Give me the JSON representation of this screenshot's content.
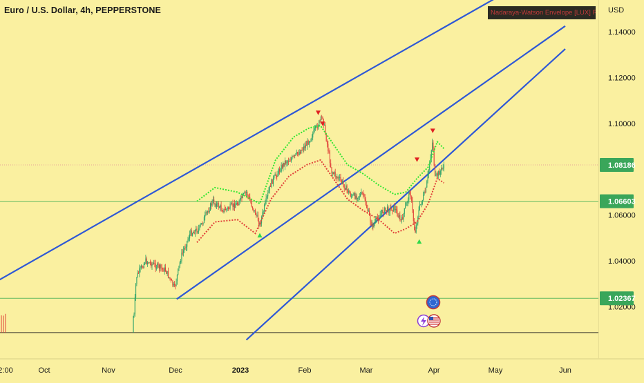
{
  "header": {
    "symbol_title": "Euro / U.S. Dollar, 4h, PEPPERSTONE",
    "indicator_tag": "Nadaraya-Watson Envelope [LUX] Repaints",
    "currency": "USD"
  },
  "colors": {
    "background": "#faf0a0",
    "channel_line": "#2e58d6",
    "envelope_upper": "#32e632",
    "envelope_lower": "#e0413a",
    "horizontal_level": "#5fb85f",
    "current_price_badge": "#3aa65a",
    "candle_up": "#2ea36a",
    "candle_down": "#e0413a"
  },
  "chart_data": {
    "type": "line",
    "price_axis": {
      "unit": "USD",
      "range": [
        1.008,
        1.155
      ],
      "tick_labels": [
        "1.14000",
        "1.12000",
        "1.10000",
        "1.06000",
        "1.04000",
        "1.02000"
      ],
      "ticks": [
        1.14,
        1.12,
        1.1,
        1.06,
        1.04,
        1.02
      ]
    },
    "time_axis": {
      "tick_labels": [
        "2:00",
        "Oct",
        "Nov",
        "Dec",
        "2023",
        "Feb",
        "Mar",
        "Apr",
        "May",
        "Jun"
      ],
      "bold_labels": [
        "2023"
      ]
    },
    "highlighted_prices": [
      {
        "label": "1.08186",
        "value": 1.08186,
        "role": "last-price"
      },
      {
        "label": "1.06603",
        "value": 1.06603,
        "role": "horizontal-level"
      },
      {
        "label": "1.02367",
        "value": 1.02367,
        "role": "horizontal-level"
      }
    ],
    "channel_lines": [
      {
        "name": "upper",
        "points": [
          [
            "2022-09-02",
            1.0267
          ],
          [
            "2023-04-26",
            1.158
          ]
        ]
      },
      {
        "name": "middle",
        "points": [
          [
            "2022-11-29",
            1.0233
          ],
          [
            "2023-05-21",
            1.1425
          ]
        ]
      },
      {
        "name": "lower",
        "points": [
          [
            "2022-12-30",
            1.0055
          ],
          [
            "2023-05-21",
            1.1325
          ]
        ]
      }
    ],
    "price_series": [
      [
        "2022-09-30",
        0.99
      ],
      [
        "2022-10-31",
        0.99
      ],
      [
        "2022-11-10",
        1.016
      ],
      [
        "2022-11-11",
        1.033
      ],
      [
        "2022-11-15",
        1.04
      ],
      [
        "2022-11-24",
        1.036
      ],
      [
        "2022-11-28",
        1.028
      ],
      [
        "2022-12-01",
        1.042
      ],
      [
        "2022-12-05",
        1.052
      ],
      [
        "2022-12-09",
        1.054
      ],
      [
        "2022-12-15",
        1.066
      ],
      [
        "2022-12-20",
        1.062
      ],
      [
        "2022-12-26",
        1.065
      ],
      [
        "2022-12-30",
        1.07
      ],
      [
        "2023-01-05",
        1.056
      ],
      [
        "2023-01-10",
        1.074
      ],
      [
        "2023-01-16",
        1.083
      ],
      [
        "2023-01-20",
        1.085
      ],
      [
        "2023-01-26",
        1.091
      ],
      [
        "2023-02-02",
        1.103
      ],
      [
        "2023-02-06",
        1.079
      ],
      [
        "2023-02-10",
        1.075
      ],
      [
        "2023-02-15",
        1.068
      ],
      [
        "2023-02-20",
        1.069
      ],
      [
        "2023-02-24",
        1.055
      ],
      [
        "2023-03-01",
        1.062
      ],
      [
        "2023-03-06",
        1.063
      ],
      [
        "2023-03-09",
        1.057
      ],
      [
        "2023-03-13",
        1.071
      ],
      [
        "2023-03-15",
        1.052
      ],
      [
        "2023-03-17",
        1.063
      ],
      [
        "2023-03-20",
        1.071
      ],
      [
        "2023-03-23",
        1.093
      ],
      [
        "2023-03-24",
        1.076
      ],
      [
        "2023-03-27",
        1.08
      ],
      [
        "2023-03-28",
        1.082
      ]
    ],
    "envelope_upper": [
      [
        "2022-12-08",
        1.066
      ],
      [
        "2022-12-16",
        1.072
      ],
      [
        "2022-12-26",
        1.07
      ],
      [
        "2023-01-05",
        1.065
      ],
      [
        "2023-01-12",
        1.084
      ],
      [
        "2023-01-20",
        1.094
      ],
      [
        "2023-01-27",
        1.098
      ],
      [
        "2023-02-01",
        1.099
      ],
      [
        "2023-02-06",
        1.092
      ],
      [
        "2023-02-13",
        1.082
      ],
      [
        "2023-02-20",
        1.078
      ],
      [
        "2023-02-27",
        1.073
      ],
      [
        "2023-03-06",
        1.069
      ],
      [
        "2023-03-11",
        1.07
      ],
      [
        "2023-03-16",
        1.076
      ],
      [
        "2023-03-21",
        1.081
      ],
      [
        "2023-03-25",
        1.092
      ],
      [
        "2023-03-28",
        1.089
      ]
    ],
    "envelope_lower": [
      [
        "2022-12-08",
        1.048
      ],
      [
        "2022-12-16",
        1.057
      ],
      [
        "2022-12-26",
        1.058
      ],
      [
        "2023-01-03",
        1.052
      ],
      [
        "2023-01-10",
        1.067
      ],
      [
        "2023-01-18",
        1.077
      ],
      [
        "2023-01-26",
        1.082
      ],
      [
        "2023-02-01",
        1.084
      ],
      [
        "2023-02-06",
        1.077
      ],
      [
        "2023-02-13",
        1.067
      ],
      [
        "2023-02-20",
        1.062
      ],
      [
        "2023-02-27",
        1.058
      ],
      [
        "2023-03-06",
        1.052
      ],
      [
        "2023-03-11",
        1.054
      ],
      [
        "2023-03-16",
        1.057
      ],
      [
        "2023-03-21",
        1.065
      ],
      [
        "2023-03-25",
        1.076
      ],
      [
        "2023-03-28",
        1.074
      ]
    ],
    "signals_down": [
      [
        "2023-01-31",
        1.1047
      ],
      [
        "2023-02-02",
        1.0999
      ],
      [
        "2023-03-16",
        1.0842
      ],
      [
        "2023-03-23",
        1.0968
      ]
    ],
    "signals_up": [
      [
        "2023-01-05",
        1.0511
      ],
      [
        "2023-03-17",
        1.0484
      ]
    ],
    "grid": false,
    "legend": "none"
  },
  "event_icons": [
    {
      "name": "globe-event-icon"
    },
    {
      "name": "lightning-event-icon"
    },
    {
      "name": "us-flag-event-icon"
    }
  ]
}
